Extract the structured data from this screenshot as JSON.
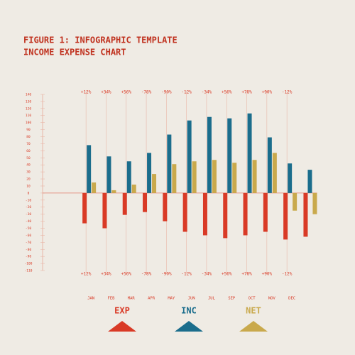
{
  "chart_data": {
    "type": "bar",
    "title": "FIGURE 1: INFOGRAPHIC TEMPLATE",
    "subtitle": "INCOME EXPENSE CHART",
    "categories": [
      "JAN",
      "FEB",
      "MAR",
      "APR",
      "MAY",
      "JUN",
      "JUL",
      "SEP",
      "OCT",
      "NOV",
      "DEC",
      null
    ],
    "changes": [
      "+12%",
      "+34%",
      "+56%",
      "-78%",
      "-90%",
      "-12%",
      "-34%",
      "+56%",
      "+78%",
      "+90%",
      "-12%",
      null
    ],
    "series": [
      {
        "name": "EXP",
        "color": "#d93a26",
        "values": [
          -43,
          -50,
          -31,
          -27,
          -40,
          -55,
          -60,
          -64,
          -60,
          -55,
          -66,
          -62
        ]
      },
      {
        "name": "INC",
        "color": "#1b6d8c",
        "values": [
          68,
          52,
          45,
          57,
          83,
          103,
          108,
          106,
          113,
          79,
          42,
          33
        ]
      },
      {
        "name": "NET",
        "color": "#c9a94c",
        "values": [
          15,
          4,
          12,
          27,
          41,
          45,
          47,
          43,
          47,
          57,
          -25,
          -30
        ]
      }
    ],
    "ylim": [
      -115,
      145
    ],
    "yticks": [
      -110,
      -100,
      -90,
      -80,
      -70,
      -60,
      -50,
      -40,
      -30,
      -20,
      -10,
      0,
      10,
      20,
      30,
      40,
      50,
      60,
      70,
      80,
      90,
      100,
      110,
      120,
      130,
      140
    ]
  }
}
